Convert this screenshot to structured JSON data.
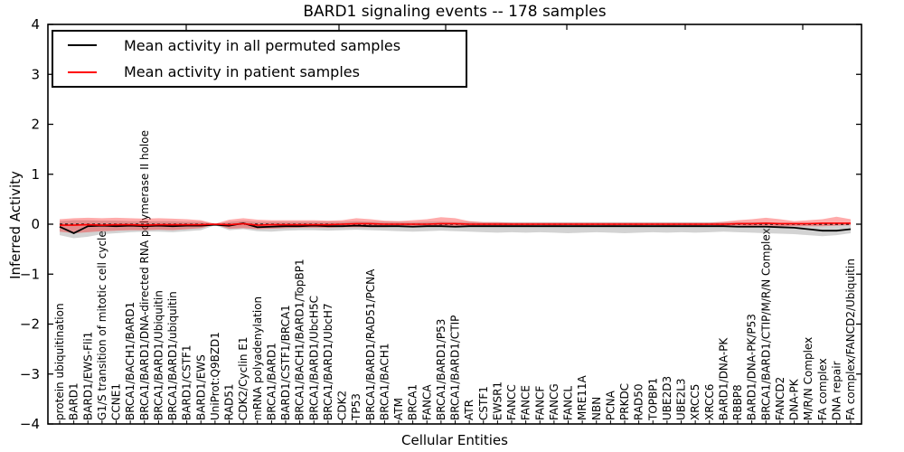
{
  "chart_data": {
    "type": "line",
    "title": "BARD1 signaling events -- 178 samples",
    "xlabel": "Cellular Entities",
    "ylabel": "Inferred Activity",
    "ylim": [
      -4,
      4
    ],
    "yticks": [
      4,
      3,
      2,
      1,
      0,
      -1,
      -2,
      -3,
      -4
    ],
    "grid": false,
    "legend_position": "upper left",
    "categories": [
      "protein ubiquitination",
      "BARD1",
      "BARD1/EWS-Fli1",
      "G1/S transition of mitotic cell cycle",
      "CCNE1",
      "BRCA1/BACH1/BARD1",
      "BRCA1/BARD1/DNA-directed RNA polymerase II holoe",
      "BRCA1/BARD1/Ubiquitin",
      "BRCA1/BARD1/ubiquitin",
      "BARD1/CSTF1",
      "BARD1/EWS",
      "UniProt:Q9BZD1",
      "RAD51",
      "CDK2/Cyclin E1",
      "mRNA polyadenylation",
      "BRCA1/BARD1",
      "BARD1/CSTF1/BRCA1",
      "BRCA1/BACH1/BARD1/TopBP1",
      "BRCA1/BARD1/UbcH5C",
      "BRCA1/BARD1/UbcH7",
      "CDK2",
      "TP53",
      "BRCA1/BARD1/RAD51/PCNA",
      "BRCA1/BACH1",
      "ATM",
      "BRCA1",
      "FANCA",
      "BRCA1/BARD1/P53",
      "BRCA1/BARD1/CTIP",
      "ATR",
      "CSTF1",
      "EWSR1",
      "FANCC",
      "FANCE",
      "FANCF",
      "FANCG",
      "FANCL",
      "MRE11A",
      "NBN",
      "PCNA",
      "PRKDC",
      "RAD50",
      "TOPBP1",
      "UBE2D3",
      "UBE2L3",
      "XRCC5",
      "XRCC6",
      "BARD1/DNA-PK",
      "RBBP8",
      "BARD1/DNA-PK/P53",
      "BRCA1/BARD1/CTIP/M/R/N Complex",
      "FANCD2",
      "DNA-PK",
      "M/R/N Complex",
      "FA complex",
      "DNA repair",
      "FA complex/FANCD2/Ubiquitin"
    ],
    "series": [
      {
        "name": "Mean activity in all permuted samples",
        "kind": "line",
        "color": "#000000",
        "values": [
          -0.05,
          -0.18,
          -0.04,
          -0.03,
          -0.04,
          -0.03,
          -0.04,
          -0.03,
          -0.04,
          -0.03,
          -0.03,
          -0.01,
          -0.03,
          0.02,
          -0.06,
          -0.05,
          -0.04,
          -0.04,
          -0.03,
          -0.04,
          -0.04,
          -0.03,
          -0.04,
          -0.04,
          -0.04,
          -0.05,
          -0.04,
          -0.04,
          -0.05,
          -0.04,
          -0.04,
          -0.04,
          -0.04,
          -0.04,
          -0.04,
          -0.04,
          -0.04,
          -0.04,
          -0.04,
          -0.04,
          -0.04,
          -0.04,
          -0.04,
          -0.04,
          -0.04,
          -0.04,
          -0.04,
          -0.04,
          -0.05,
          -0.05,
          -0.05,
          -0.06,
          -0.07,
          -0.1,
          -0.13,
          -0.13,
          -0.1
        ]
      },
      {
        "name": "Mean activity in patient samples",
        "kind": "line",
        "color": "#ff0000",
        "values": [
          -0.02,
          -0.02,
          -0.01,
          -0.02,
          -0.01,
          -0.01,
          -0.02,
          -0.01,
          -0.01,
          -0.01,
          -0.01,
          0.0,
          -0.01,
          0.01,
          -0.02,
          -0.01,
          -0.01,
          -0.01,
          -0.01,
          -0.01,
          0.0,
          0.01,
          0.01,
          0.0,
          0.0,
          0.0,
          0.0,
          0.01,
          0.01,
          0.0,
          0.0,
          0.0,
          0.0,
          0.0,
          0.0,
          0.0,
          0.0,
          0.0,
          0.0,
          0.0,
          0.0,
          0.0,
          0.0,
          0.0,
          0.0,
          0.0,
          0.0,
          0.0,
          0.01,
          0.01,
          0.02,
          0.01,
          0.01,
          0.01,
          0.02,
          0.02,
          0.02
        ]
      },
      {
        "name": "permuted samples std band",
        "kind": "band",
        "color": "rgba(128,128,128,0.35)",
        "upper": [
          0.06,
          0.08,
          0.08,
          0.07,
          0.07,
          0.06,
          0.06,
          0.06,
          0.06,
          0.05,
          0.05,
          0.01,
          0.05,
          0.07,
          0.05,
          0.05,
          0.05,
          0.05,
          0.05,
          0.05,
          0.05,
          0.06,
          0.05,
          0.05,
          0.05,
          0.04,
          0.05,
          0.05,
          0.04,
          0.05,
          0.04,
          0.04,
          0.04,
          0.04,
          0.04,
          0.04,
          0.04,
          0.04,
          0.04,
          0.04,
          0.04,
          0.04,
          0.04,
          0.04,
          0.04,
          0.04,
          0.04,
          0.04,
          0.04,
          0.04,
          0.04,
          0.03,
          0.03,
          0.02,
          0.02,
          0.02,
          0.03
        ],
        "lower": [
          -0.22,
          -0.28,
          -0.25,
          -0.2,
          -0.18,
          -0.16,
          -0.15,
          -0.15,
          -0.16,
          -0.14,
          -0.12,
          -0.02,
          -0.12,
          -0.1,
          -0.14,
          -0.15,
          -0.13,
          -0.12,
          -0.12,
          -0.13,
          -0.12,
          -0.11,
          -0.12,
          -0.13,
          -0.14,
          -0.15,
          -0.14,
          -0.13,
          -0.14,
          -0.15,
          -0.16,
          -0.17,
          -0.16,
          -0.17,
          -0.16,
          -0.17,
          -0.18,
          -0.17,
          -0.16,
          -0.17,
          -0.18,
          -0.17,
          -0.16,
          -0.17,
          -0.16,
          -0.17,
          -0.16,
          -0.15,
          -0.16,
          -0.17,
          -0.18,
          -0.19,
          -0.2,
          -0.22,
          -0.24,
          -0.22,
          -0.18
        ]
      },
      {
        "name": "patient samples std band",
        "kind": "band",
        "color": "rgba(255,0,0,0.33)",
        "upper": [
          0.1,
          0.12,
          0.13,
          0.12,
          0.13,
          0.12,
          0.11,
          0.12,
          0.11,
          0.1,
          0.08,
          0.01,
          0.09,
          0.12,
          0.09,
          0.08,
          0.08,
          0.08,
          0.08,
          0.07,
          0.08,
          0.12,
          0.1,
          0.07,
          0.06,
          0.08,
          0.1,
          0.14,
          0.12,
          0.06,
          0.04,
          0.04,
          0.03,
          0.03,
          0.03,
          0.03,
          0.03,
          0.03,
          0.03,
          0.03,
          0.03,
          0.03,
          0.03,
          0.03,
          0.03,
          0.03,
          0.03,
          0.05,
          0.08,
          0.1,
          0.13,
          0.1,
          0.06,
          0.08,
          0.1,
          0.15,
          0.1
        ],
        "lower": [
          -0.15,
          -0.18,
          -0.16,
          -0.14,
          -0.13,
          -0.12,
          -0.12,
          -0.11,
          -0.12,
          -0.1,
          -0.08,
          -0.01,
          -0.09,
          -0.08,
          -0.1,
          -0.09,
          -0.08,
          -0.07,
          -0.07,
          -0.07,
          -0.06,
          -0.06,
          -0.06,
          -0.06,
          -0.05,
          -0.05,
          -0.05,
          -0.05,
          -0.05,
          -0.04,
          -0.03,
          -0.03,
          -0.03,
          -0.03,
          -0.02,
          -0.03,
          -0.02,
          -0.03,
          -0.02,
          -0.03,
          -0.02,
          -0.03,
          -0.02,
          -0.03,
          -0.02,
          -0.03,
          -0.02,
          -0.03,
          -0.03,
          -0.04,
          -0.04,
          -0.04,
          -0.04,
          -0.04,
          -0.04,
          -0.03,
          -0.02
        ]
      },
      {
        "name": "zero reference",
        "kind": "dashed",
        "color": "#000000",
        "value": 0
      }
    ]
  }
}
